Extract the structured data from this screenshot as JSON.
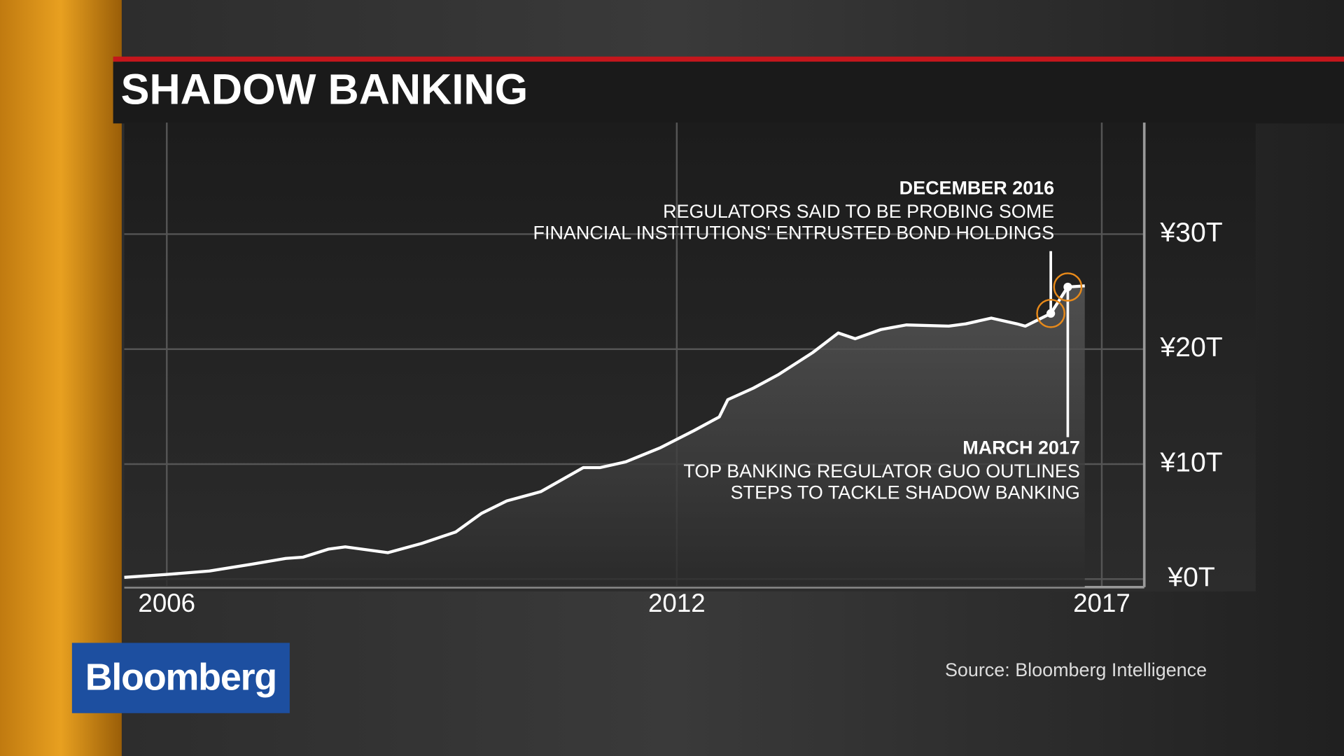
{
  "title": "SHADOW BANKING",
  "source": "Source: Bloomberg Intelligence",
  "logo": "Bloomberg",
  "chart_data": {
    "type": "line",
    "color": "#ffffff",
    "x": [
      2005.5,
      2006.0,
      2006.5,
      2007.0,
      2007.4,
      2007.6,
      2007.9,
      2008.1,
      2008.6,
      2009.0,
      2009.4,
      2009.7,
      2010.0,
      2010.4,
      2010.9,
      2011.1,
      2011.4,
      2011.8,
      2012.2,
      2012.5,
      2012.6,
      2012.9,
      2013.2,
      2013.6,
      2013.9,
      2014.1,
      2014.4,
      2014.7,
      2015.2,
      2015.4,
      2015.7,
      2016.0,
      2016.1,
      2016.4,
      2016.6,
      2016.8
    ],
    "values": [
      0.15,
      0.4,
      0.7,
      1.3,
      1.8,
      1.9,
      2.6,
      2.8,
      2.3,
      3.1,
      4.1,
      5.7,
      6.8,
      7.6,
      9.7,
      9.7,
      10.2,
      11.4,
      12.9,
      14.1,
      15.6,
      16.6,
      17.8,
      19.7,
      21.4,
      20.9,
      21.7,
      22.1,
      22.0,
      22.2,
      22.7,
      22.2,
      22.0,
      23.1,
      25.4,
      25.5
    ],
    "xlim": [
      2005.5,
      2017.5
    ],
    "xticks": [
      2006,
      2012,
      2017
    ],
    "ylim": [
      -0.7,
      39.7
    ],
    "yticks": [
      {
        "value": 0,
        "label": "¥0T"
      },
      {
        "value": 10,
        "label": "¥10T"
      },
      {
        "value": 20,
        "label": "¥20T"
      },
      {
        "value": 30,
        "label": "¥30T"
      }
    ],
    "grid": true,
    "annotations": [
      {
        "title": "DECEMBER 2016",
        "text": [
          "REGULATORS SAID TO BE PROBING SOME",
          "FINANCIAL INSTITUTIONS' ENTRUSTED BOND HOLDINGS"
        ],
        "x": 2016.4,
        "y": 23.1
      },
      {
        "title": "MARCH 2017",
        "text": [
          "TOP BANKING REGULATOR GUO OUTLINES",
          "STEPS TO TACKLE SHADOW BANKING"
        ],
        "x": 2016.6,
        "y": 25.4
      }
    ]
  }
}
